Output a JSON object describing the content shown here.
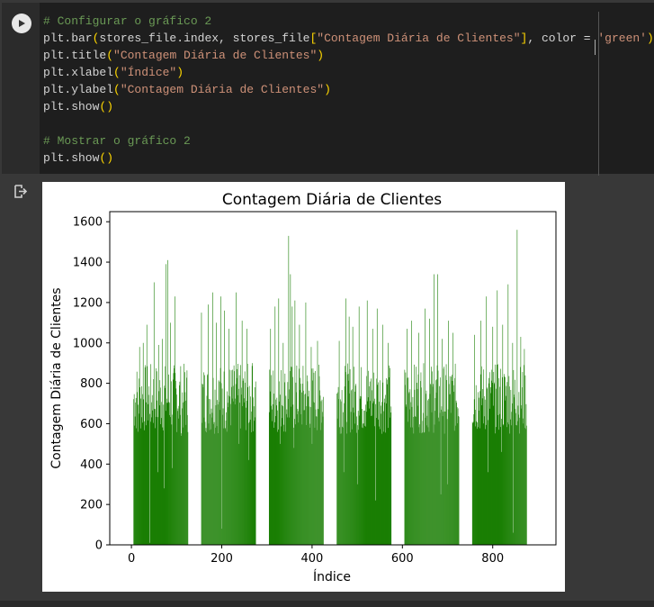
{
  "code_lines": [
    {
      "text": "# Configurar o gráfico 2"
    },
    {
      "p1": "plt.bar",
      "b1": "(",
      "p2": "stores_file.index, stores_file",
      "b2": "[",
      "s1": "\"Contagem Diária de Clientes\"",
      "b3": "]",
      "p3": ", color = ",
      "s2": "'green'",
      "b4": ")"
    },
    {
      "p1": "plt.title",
      "b1": "(",
      "s1": "\"Contagem Diária de Clientes\"",
      "b2": ")"
    },
    {
      "p1": "plt.xlabel",
      "b1": "(",
      "s1": "\"Índice\"",
      "b2": ")"
    },
    {
      "p1": "plt.ylabel",
      "b1": "(",
      "s1": "\"Contagem Diária de Clientes\"",
      "b2": ")"
    },
    {
      "p1": "plt.show",
      "b1": "()"
    },
    {
      "text": ""
    },
    {
      "text": "# Mostrar o gráfico 2"
    },
    {
      "p1": "plt.show",
      "b1": "()"
    }
  ],
  "icons": {
    "run": "play-icon",
    "output": "output-redirect-icon"
  },
  "colors": {
    "bar": "#1a7f04",
    "comment": "#6a9955",
    "string": "#ce9178",
    "bracket": "#ffd700"
  },
  "chart_data": {
    "type": "bar",
    "title": "Contagem Diária de Clientes",
    "xlabel": "Índice",
    "ylabel": "Contagem Diária de Clientes",
    "xlim": [
      -48,
      940
    ],
    "ylim": [
      0,
      1650
    ],
    "xticks": [
      0,
      200,
      400,
      600,
      800
    ],
    "yticks": [
      0,
      200,
      400,
      600,
      800,
      1000,
      1200,
      1400,
      1600
    ],
    "color": "green",
    "groups": [
      {
        "x_start": 5,
        "x_end": 125
      },
      {
        "x_start": 155,
        "x_end": 275
      },
      {
        "x_start": 305,
        "x_end": 425
      },
      {
        "x_start": 455,
        "x_end": 575
      },
      {
        "x_start": 605,
        "x_end": 725
      },
      {
        "x_start": 755,
        "x_end": 875
      }
    ],
    "spikes": [
      [
        0,
        1130
      ],
      [
        2,
        1160
      ],
      [
        18,
        980
      ],
      [
        26,
        1000
      ],
      [
        34,
        1090
      ],
      [
        50,
        1300
      ],
      [
        60,
        990
      ],
      [
        68,
        1020
      ],
      [
        76,
        1390
      ],
      [
        80,
        1410
      ],
      [
        86,
        1100
      ],
      [
        96,
        1230
      ],
      [
        155,
        1150
      ],
      [
        170,
        1190
      ],
      [
        180,
        1250
      ],
      [
        188,
        1100
      ],
      [
        198,
        1230
      ],
      [
        206,
        1160
      ],
      [
        216,
        1070
      ],
      [
        232,
        1250
      ],
      [
        245,
        1110
      ],
      [
        256,
        1070
      ],
      [
        268,
        900
      ],
      [
        308,
        1070
      ],
      [
        318,
        1180
      ],
      [
        326,
        1220
      ],
      [
        336,
        1000
      ],
      [
        348,
        1530
      ],
      [
        352,
        1340
      ],
      [
        356,
        1180
      ],
      [
        362,
        1210
      ],
      [
        372,
        1090
      ],
      [
        386,
        1200
      ],
      [
        398,
        980
      ],
      [
        412,
        1010
      ],
      [
        460,
        1010
      ],
      [
        475,
        1220
      ],
      [
        482,
        1130
      ],
      [
        490,
        1080
      ],
      [
        504,
        1180
      ],
      [
        522,
        1210
      ],
      [
        534,
        1070
      ],
      [
        544,
        1170
      ],
      [
        556,
        1090
      ],
      [
        568,
        1000
      ],
      [
        610,
        1070
      ],
      [
        620,
        1110
      ],
      [
        636,
        1050
      ],
      [
        650,
        1170
      ],
      [
        660,
        1120
      ],
      [
        670,
        1340
      ],
      [
        678,
        1340
      ],
      [
        688,
        1020
      ],
      [
        702,
        1110
      ],
      [
        712,
        1050
      ],
      [
        760,
        1040
      ],
      [
        774,
        1110
      ],
      [
        786,
        1230
      ],
      [
        800,
        1080
      ],
      [
        810,
        1260
      ],
      [
        822,
        1090
      ],
      [
        834,
        1290
      ],
      [
        844,
        1000
      ],
      [
        854,
        1560
      ],
      [
        862,
        1030
      ],
      [
        870,
        970
      ]
    ],
    "dips": [
      [
        14,
        560
      ],
      [
        40,
        10
      ],
      [
        58,
        360
      ],
      [
        72,
        280
      ],
      [
        90,
        380
      ],
      [
        110,
        540
      ],
      [
        200,
        80
      ],
      [
        238,
        500
      ],
      [
        260,
        420
      ],
      [
        330,
        500
      ],
      [
        360,
        480
      ],
      [
        400,
        500
      ],
      [
        470,
        360
      ],
      [
        500,
        300
      ],
      [
        540,
        220
      ],
      [
        620,
        400
      ],
      [
        650,
        560
      ],
      [
        685,
        250
      ],
      [
        700,
        300
      ],
      [
        790,
        360
      ],
      [
        820,
        460
      ],
      [
        845,
        60
      ]
    ],
    "baseline_range": [
      550,
      900
    ]
  }
}
